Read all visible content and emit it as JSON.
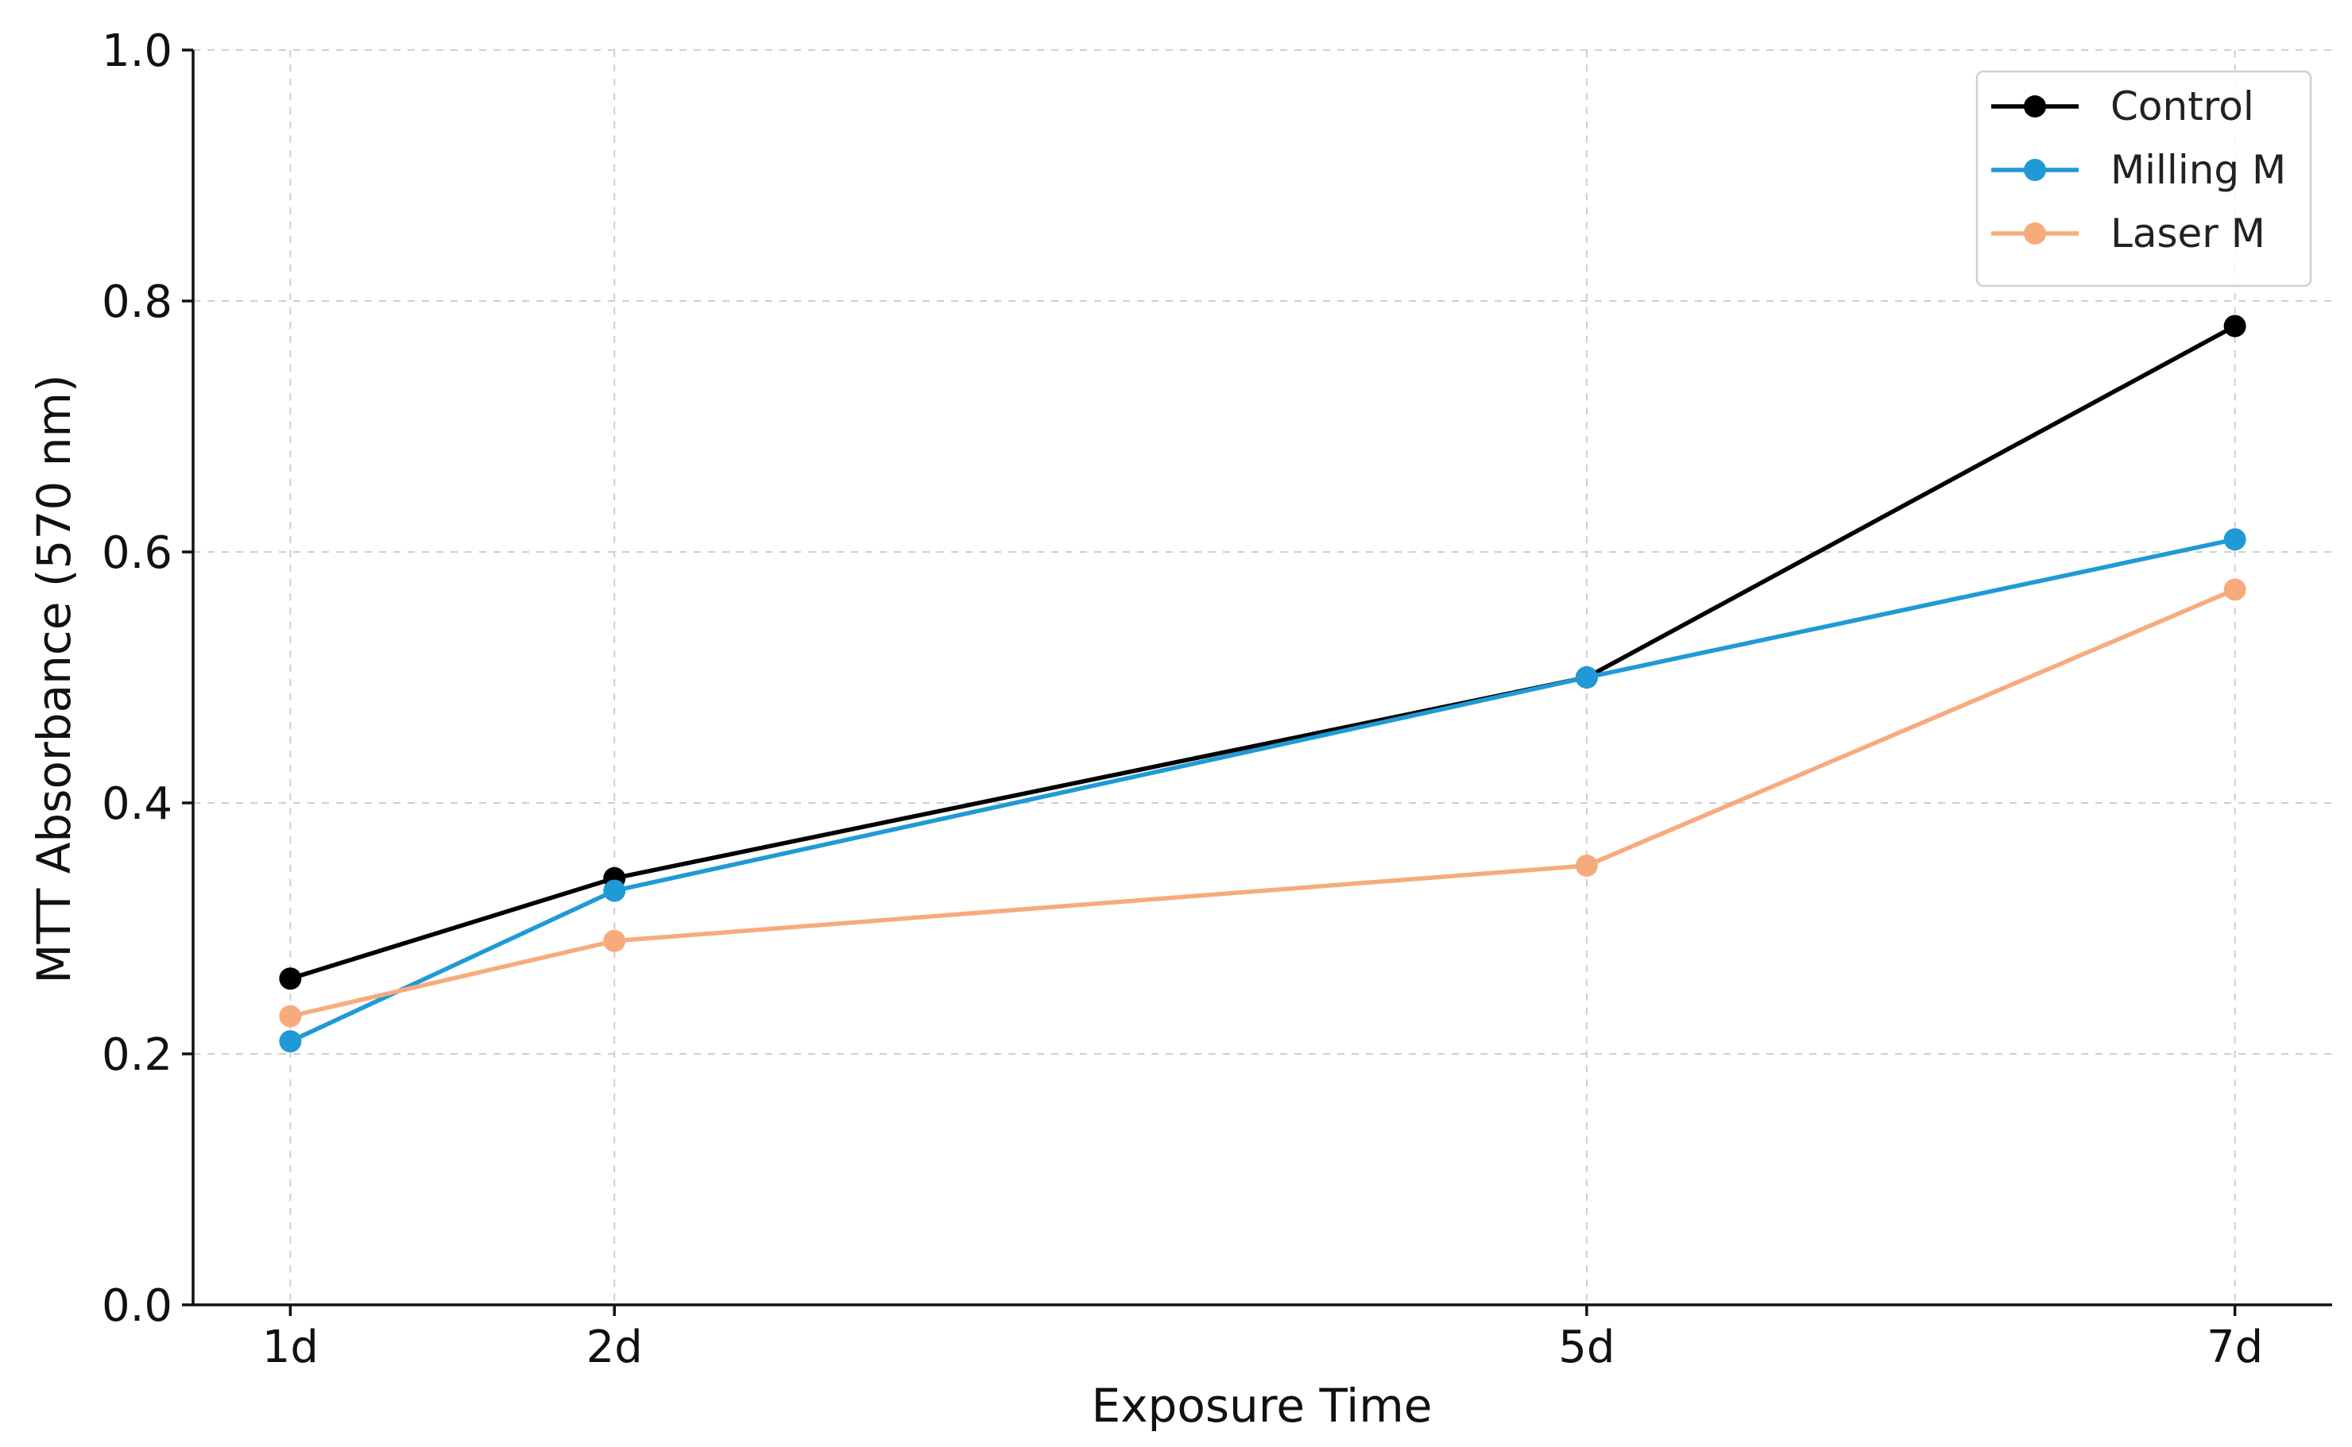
{
  "chart_data": {
    "type": "line",
    "xlabel": "Exposure Time",
    "ylabel": "MTT Absorbance (570 nm)",
    "x_categories": [
      "1d",
      "2d",
      "5d",
      "7d"
    ],
    "x_values": [
      1,
      2,
      5,
      7
    ],
    "xlim": [
      0.7,
      7.3
    ],
    "ylim": [
      0.0,
      1.0
    ],
    "y_ticks": [
      0.0,
      0.2,
      0.4,
      0.6,
      0.8,
      1.0
    ],
    "y_tick_labels": [
      "0.0",
      "0.2",
      "0.4",
      "0.6",
      "0.8",
      "1.0"
    ],
    "grid": true,
    "legend_position": "top-right",
    "series": [
      {
        "name": "Control",
        "color": "#000000",
        "values": [
          0.26,
          0.34,
          0.5,
          0.78
        ]
      },
      {
        "name": "Milling M",
        "color": "#1f9ad6",
        "values": [
          0.21,
          0.33,
          0.5,
          0.61
        ]
      },
      {
        "name": "Laser M",
        "color": "#f7ab7c",
        "values": [
          0.23,
          0.29,
          0.35,
          0.57
        ]
      }
    ]
  }
}
